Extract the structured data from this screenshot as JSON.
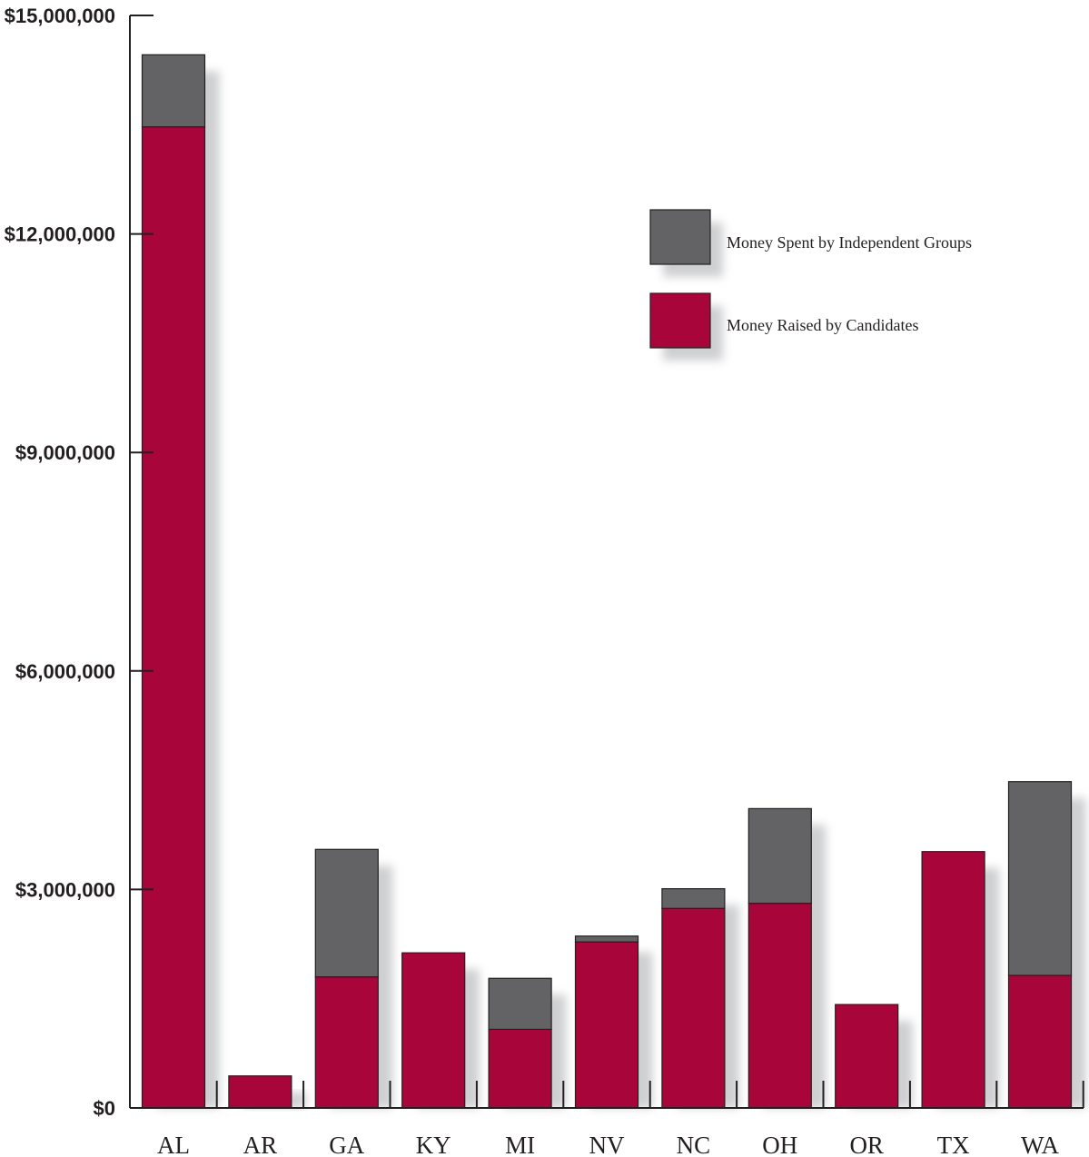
{
  "chart_data": {
    "type": "bar",
    "stacked": true,
    "categories": [
      "AL",
      "AR",
      "GA",
      "KY",
      "MI",
      "NV",
      "NC",
      "OH",
      "OR",
      "TX",
      "WA"
    ],
    "series": [
      {
        "name": "Money Raised by Candidates",
        "color": "#a8063a",
        "values": [
          13470000,
          440000,
          1800000,
          2130000,
          1080000,
          2280000,
          2740000,
          2810000,
          1420000,
          3520000,
          1820000
        ]
      },
      {
        "name": "Money Spent by Independent Groups",
        "color": "#636366",
        "values": [
          990000,
          0,
          1750000,
          0,
          700000,
          80000,
          270000,
          1300000,
          0,
          0,
          2660000
        ]
      }
    ],
    "ylim": [
      0,
      15000000
    ],
    "yticks": [
      0,
      3000000,
      6000000,
      9000000,
      12000000,
      15000000
    ],
    "ytick_labels": [
      "$0",
      "$3,000,000",
      "$6,000,000",
      "$9,000,000",
      "$12,000,000",
      "$15,000,000"
    ],
    "title": "",
    "xlabel": "",
    "ylabel": "",
    "legend": {
      "placement": "top-right",
      "entries": [
        "Money Spent by Independent Groups",
        "Money Raised by Candidates"
      ]
    },
    "grid": false
  }
}
